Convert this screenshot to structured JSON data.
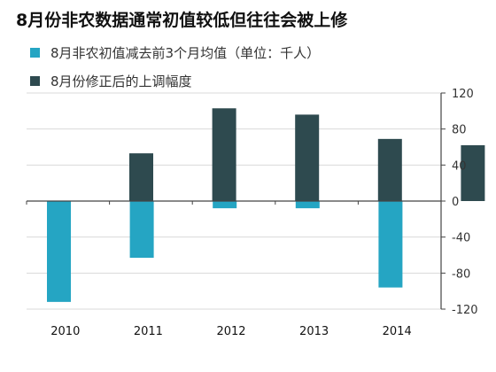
{
  "colors": {
    "series_0": "#25a5c3",
    "series_1": "#2e4a4f",
    "axis": "#444444",
    "grid": "#d9d9d9"
  },
  "chart_data": {
    "type": "bar",
    "title": "8月份非农数据通常初值较低但往往会被上修",
    "categories": [
      "2010",
      "2011",
      "2012",
      "2013",
      "2014"
    ],
    "series": [
      {
        "name": "8月非农初值减去前3个月均值（单位：千人）",
        "values": [
          -112,
          -63,
          -8,
          -8,
          -96
        ]
      },
      {
        "name": "8月份修正后的上调幅度",
        "values": [
          53,
          103,
          96,
          69,
          62
        ]
      }
    ],
    "ylim": [
      -120,
      120
    ],
    "yticks": [
      "120",
      "80",
      "40",
      "0",
      "-40",
      "-80",
      "-120"
    ],
    "ytick_values": [
      120,
      80,
      40,
      0,
      -40,
      -80,
      -120
    ],
    "y_axis_side": "right",
    "grid": true,
    "legend_position": "top-left"
  }
}
